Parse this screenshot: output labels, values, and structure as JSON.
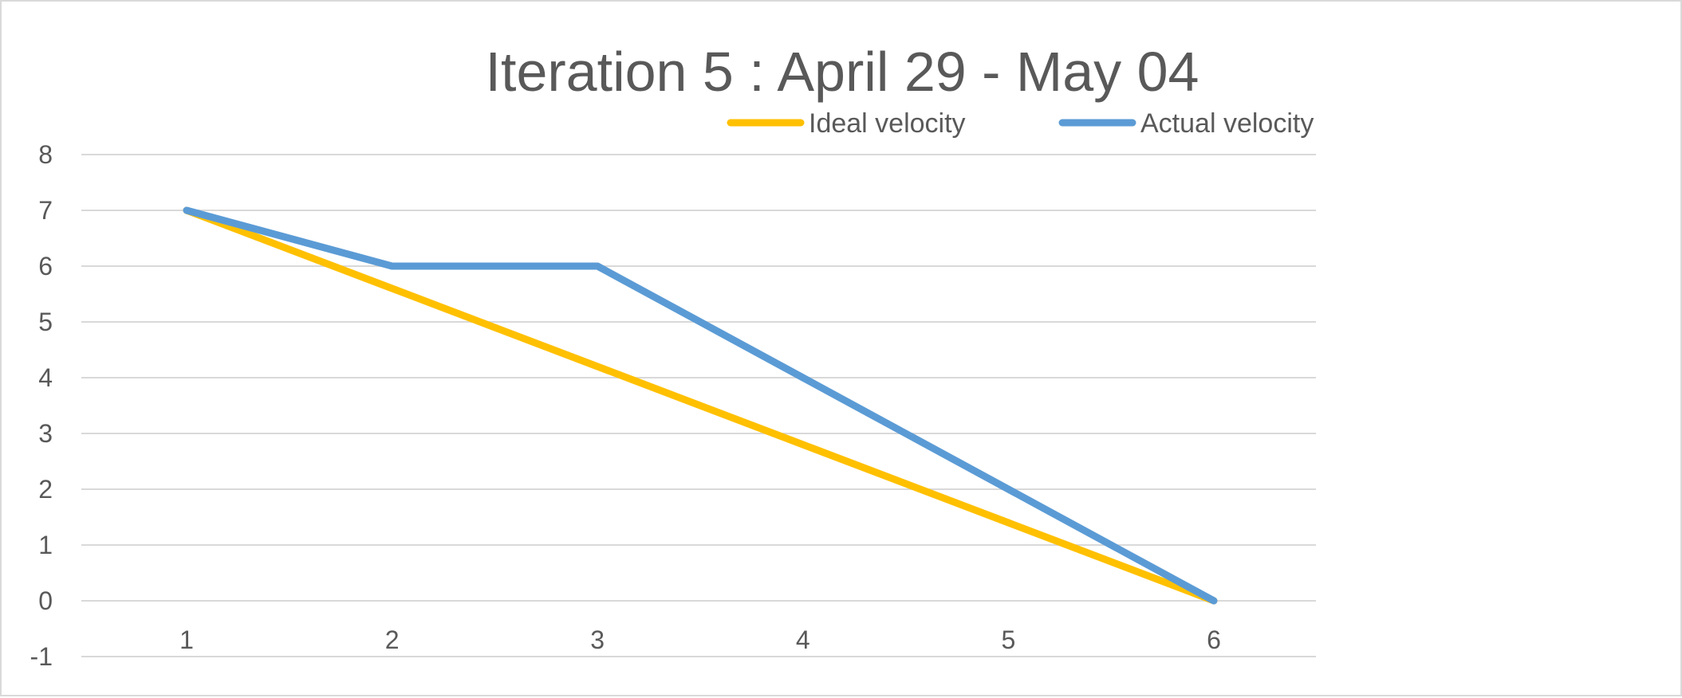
{
  "chart_data": {
    "type": "line",
    "title": "Iteration 5 : April 29 - May 04",
    "xlabel": "",
    "ylabel": "",
    "x": [
      "1",
      "2",
      "3",
      "4",
      "5",
      "6"
    ],
    "ylim": [
      -1,
      8
    ],
    "yticks": [
      "8",
      "7",
      "6",
      "5",
      "4",
      "3",
      "2",
      "1",
      "0",
      "-1"
    ],
    "grid": true,
    "legend_position": "top",
    "series": [
      {
        "name": "Ideal velocity",
        "color": "#FFC000",
        "values": [
          7,
          5.6,
          4.2,
          2.8,
          1.4,
          0
        ]
      },
      {
        "name": "Actual velocity",
        "color": "#5B9BD5",
        "values": [
          7,
          6,
          6,
          4,
          2,
          0
        ]
      }
    ]
  }
}
